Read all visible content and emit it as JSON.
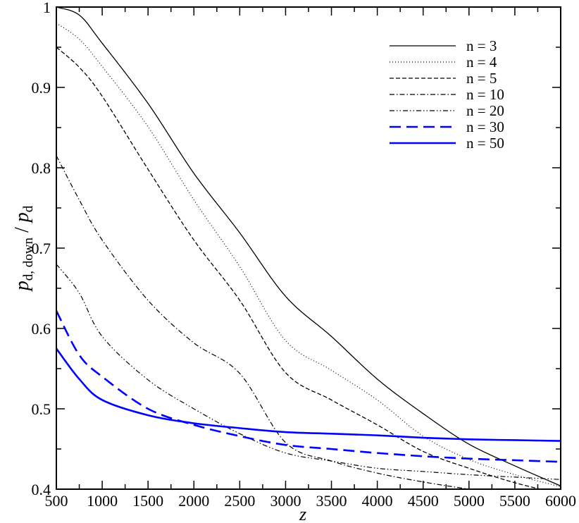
{
  "chart_data": {
    "type": "line",
    "title": "",
    "xlabel": "z",
    "ylabel_parts": [
      "p",
      "d, down",
      " / ",
      "p",
      "d"
    ],
    "xlim": [
      500,
      6000
    ],
    "ylim": [
      0.4,
      1.0
    ],
    "x_ticks": [
      500,
      1000,
      1500,
      2000,
      2500,
      3000,
      3500,
      4000,
      4500,
      5000,
      5500,
      6000
    ],
    "x_tick_labels": [
      "500",
      "1000",
      "1500",
      "2000",
      "2500",
      "3000",
      "3500",
      "4000",
      "4500",
      "5000",
      "5500",
      "6000"
    ],
    "y_ticks": [
      0.4,
      0.5,
      0.6,
      0.7,
      0.8,
      0.9,
      1.0
    ],
    "y_tick_labels": [
      "0.4",
      "0.5",
      "0.6",
      "0.7",
      "0.8",
      "0.9",
      "1"
    ],
    "grid": false,
    "legend_position": "top-right",
    "x": [
      500,
      750,
      1000,
      1500,
      2000,
      2500,
      3000,
      3500,
      4000,
      4500,
      5000,
      5500,
      6000
    ],
    "series": [
      {
        "name": "n = 3",
        "color": "#000000",
        "style": "solid",
        "values": [
          1.0,
          0.99,
          0.955,
          0.88,
          0.793,
          0.719,
          0.64,
          0.59,
          0.537,
          0.494,
          0.456,
          0.429,
          0.404
        ]
      },
      {
        "name": "n = 4",
        "color": "#000000",
        "style": "dotted",
        "values": [
          0.98,
          0.96,
          0.926,
          0.851,
          0.76,
          0.677,
          0.585,
          0.548,
          0.511,
          0.466,
          0.437,
          0.418,
          0.403
        ]
      },
      {
        "name": "n = 5",
        "color": "#000000",
        "style": "dashed",
        "values": [
          0.95,
          0.925,
          0.889,
          0.798,
          0.71,
          0.635,
          0.545,
          0.511,
          0.48,
          0.447,
          0.426,
          0.408,
          0.394
        ]
      },
      {
        "name": "n = 10",
        "color": "#000000",
        "style": "dash-dot",
        "values": [
          0.815,
          0.76,
          0.71,
          0.635,
          0.582,
          0.544,
          0.458,
          0.435,
          0.42,
          0.409,
          0.4,
          0.392,
          0.385
        ]
      },
      {
        "name": "n = 20",
        "color": "#000000",
        "style": "dash-dot-dot",
        "values": [
          0.68,
          0.644,
          0.59,
          0.536,
          0.5,
          0.469,
          0.445,
          0.435,
          0.426,
          0.422,
          0.418,
          0.415,
          0.412
        ]
      },
      {
        "name": "n = 30",
        "color": "#0000ff",
        "style": "long-dash",
        "values": [
          0.622,
          0.567,
          0.54,
          0.5,
          0.48,
          0.466,
          0.455,
          0.45,
          0.445,
          0.441,
          0.438,
          0.436,
          0.434
        ]
      },
      {
        "name": "n = 50",
        "color": "#0000ff",
        "style": "solid-thick",
        "values": [
          0.575,
          0.537,
          0.511,
          0.492,
          0.482,
          0.476,
          0.471,
          0.469,
          0.467,
          0.464,
          0.462,
          0.461,
          0.46
        ]
      }
    ]
  }
}
